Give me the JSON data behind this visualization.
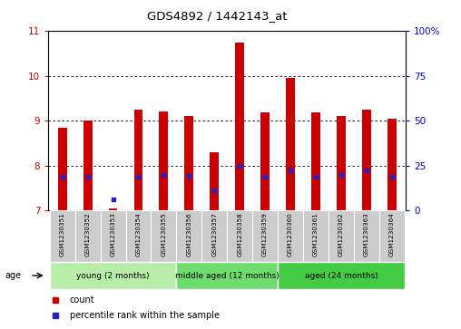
{
  "title": "GDS4892 / 1442143_at",
  "samples": [
    "GSM1230351",
    "GSM1230352",
    "GSM1230353",
    "GSM1230354",
    "GSM1230355",
    "GSM1230356",
    "GSM1230357",
    "GSM1230358",
    "GSM1230359",
    "GSM1230360",
    "GSM1230361",
    "GSM1230362",
    "GSM1230363",
    "GSM1230364"
  ],
  "count_values": [
    8.85,
    9.0,
    7.05,
    9.25,
    9.22,
    9.1,
    8.3,
    10.75,
    9.2,
    9.95,
    9.2,
    9.1,
    9.25,
    9.05
  ],
  "percentile_values": [
    7.75,
    7.75,
    7.25,
    7.75,
    7.8,
    7.78,
    7.45,
    8.0,
    7.75,
    7.9,
    7.75,
    7.8,
    7.9,
    7.75
  ],
  "ymin": 7,
  "ymax": 11,
  "yticks_left": [
    7,
    8,
    9,
    10,
    11
  ],
  "yticks_right": [
    0,
    25,
    50,
    75,
    100
  ],
  "bar_color": "#cc0000",
  "dot_color": "#2222cc",
  "bar_width": 0.35,
  "group_colors": [
    "#b8eeaa",
    "#6edd6e",
    "#44cc44"
  ],
  "groups": [
    {
      "label": "young (2 months)",
      "start": 0,
      "end": 5
    },
    {
      "label": "middle aged (12 months)",
      "start": 5,
      "end": 9
    },
    {
      "label": "aged (24 months)",
      "start": 9,
      "end": 14
    }
  ],
  "age_label": "age",
  "legend_count": "count",
  "legend_percentile": "percentile rank within the sample",
  "tick_color_left": "#cc0000",
  "tick_color_right": "#0000cc",
  "sample_bg": "#cccccc",
  "grid_yticks": [
    8,
    9,
    10
  ]
}
